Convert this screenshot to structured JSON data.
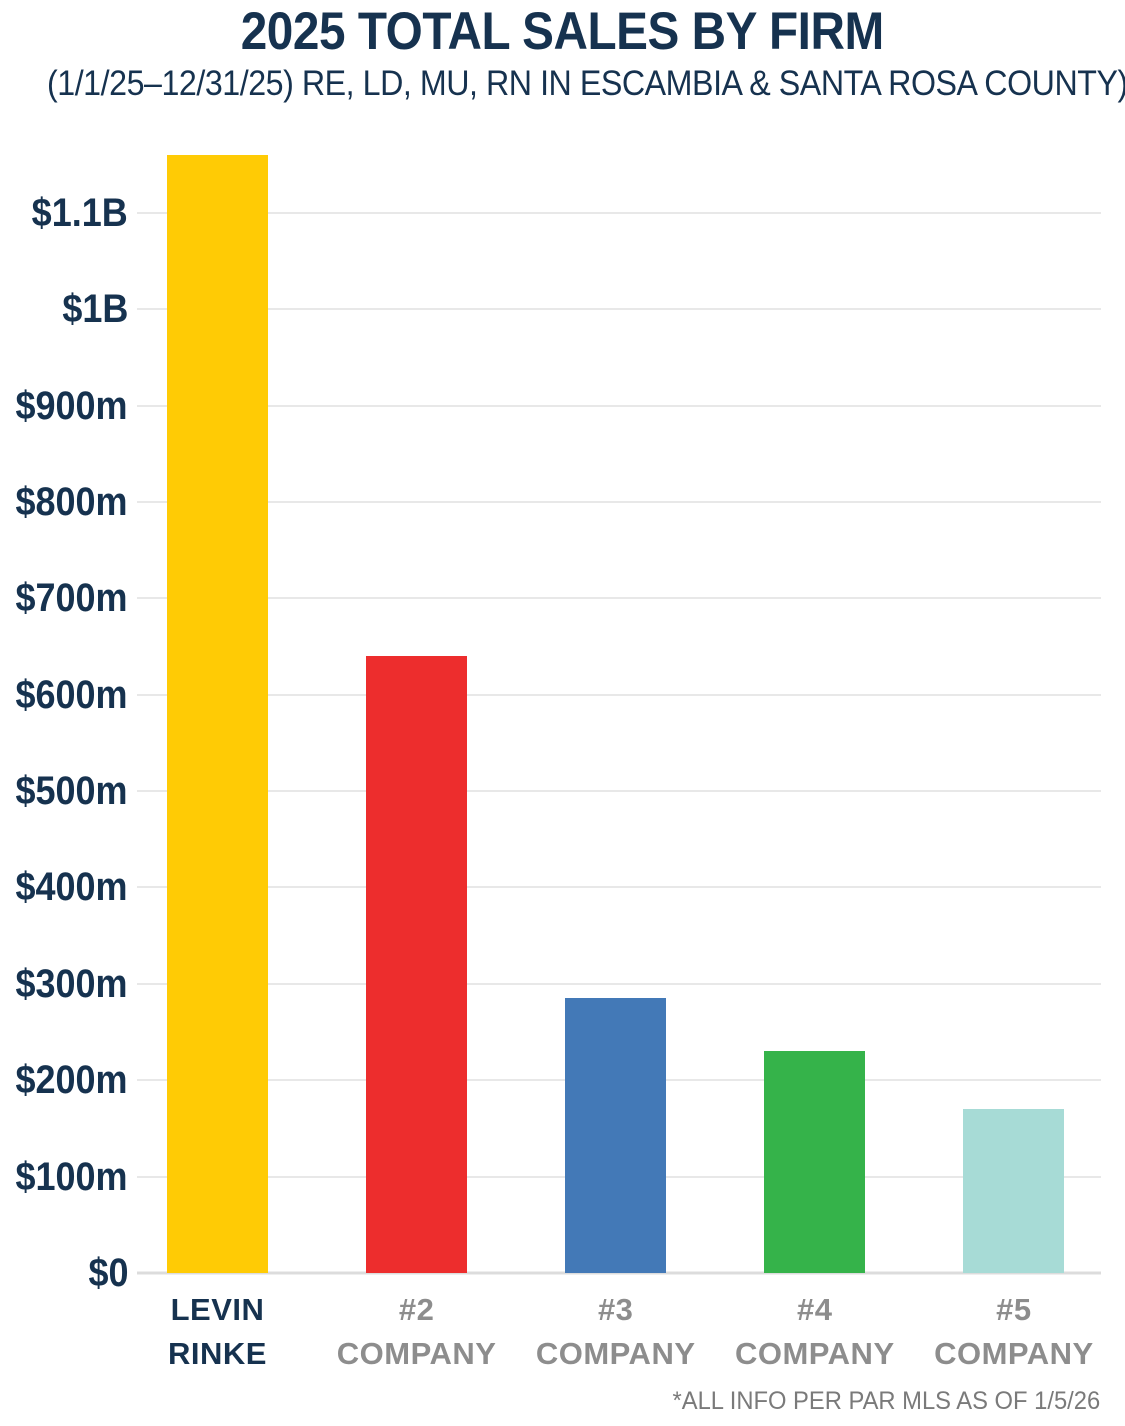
{
  "colors": {
    "navy": "#16324F",
    "label_gray": "#8D8D8D",
    "footnote_gray": "#7A7A7A",
    "gridline": "#E8E8E8",
    "baseline": "#DCDCDC"
  },
  "chart_data": {
    "type": "bar",
    "title": "2025 TOTAL SALES BY FIRM",
    "subtitle": "(1/1/25–12/31/25) RE, LD, MU, RN IN ESCAMBIA & SANTA ROSA COUNTY)",
    "unit": "USD millions",
    "categories": [
      "LEVIN RINKE",
      "#2 COMPANY",
      "#3 COMPANY",
      "#4 COMPANY",
      "#5 COMPANY"
    ],
    "values": [
      1160,
      640,
      285,
      230,
      170
    ],
    "bar_colors": [
      "#FFCB05",
      "#ED2D2D",
      "#4379B7",
      "#35B34A",
      "#A7DBD6"
    ],
    "highlight_category_index": 0,
    "y_ticks": [
      {
        "label": "$1.1B",
        "value": 1100
      },
      {
        "label": "$1B",
        "value": 1000
      },
      {
        "label": "$900m",
        "value": 900
      },
      {
        "label": "$800m",
        "value": 800
      },
      {
        "label": "$700m",
        "value": 700
      },
      {
        "label": "$600m",
        "value": 600
      },
      {
        "label": "$500m",
        "value": 500
      },
      {
        "label": "$400m",
        "value": 400
      },
      {
        "label": "$300m",
        "value": 300
      },
      {
        "label": "$200m",
        "value": 200
      },
      {
        "label": "$100m",
        "value": 100
      },
      {
        "label": "$0",
        "value": 0
      }
    ],
    "ylim": [
      0,
      1160
    ],
    "grid": true,
    "legend": false,
    "footnote": "*ALL INFO PER PAR MLS AS OF 1/5/26"
  }
}
